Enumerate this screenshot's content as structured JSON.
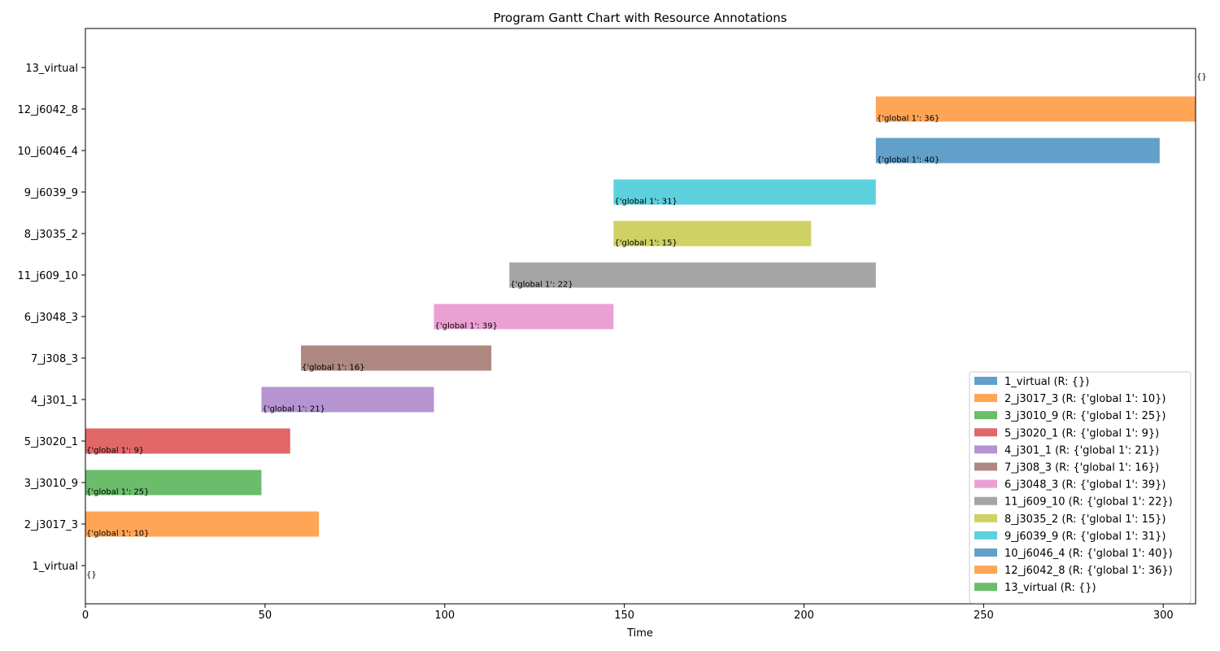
{
  "chart_data": {
    "type": "gantt",
    "title": "Program Gantt Chart with Resource Annotations",
    "xlabel": "Time",
    "ylabel": "",
    "xlim": [
      0,
      309
    ],
    "xticks": [
      0,
      50,
      100,
      150,
      200,
      250,
      300
    ],
    "grid": false,
    "legend_position": "lower-right",
    "tasks": [
      {
        "name": "1_virtual",
        "start": 0,
        "end": 0,
        "resources": "{}",
        "color": "#1f77b4",
        "legend": "1_virtual (R: {})"
      },
      {
        "name": "2_j3017_3",
        "start": 0,
        "end": 65,
        "resources": "{'global 1': 10}",
        "color": "#ff7f0e",
        "legend": "2_j3017_3 (R: {'global 1': 10})"
      },
      {
        "name": "3_j3010_9",
        "start": 0,
        "end": 49,
        "resources": "{'global 1': 25}",
        "color": "#2ca02c",
        "legend": "3_j3010_9 (R: {'global 1': 25})"
      },
      {
        "name": "5_j3020_1",
        "start": 0,
        "end": 57,
        "resources": "{'global 1': 9}",
        "color": "#d62728",
        "legend": "5_j3020_1 (R: {'global 1': 9})"
      },
      {
        "name": "4_j301_1",
        "start": 49,
        "end": 97,
        "resources": "{'global 1': 21}",
        "color": "#9467bd",
        "legend": "4_j301_1 (R: {'global 1': 21})"
      },
      {
        "name": "7_j308_3",
        "start": 60,
        "end": 113,
        "resources": "{'global 1': 16}",
        "color": "#8c564b",
        "legend": "7_j308_3 (R: {'global 1': 16})"
      },
      {
        "name": "6_j3048_3",
        "start": 97,
        "end": 147,
        "resources": "{'global 1': 39}",
        "color": "#e377c2",
        "legend": "6_j3048_3 (R: {'global 1': 39})"
      },
      {
        "name": "11_j609_10",
        "start": 118,
        "end": 220,
        "resources": "{'global 1': 22}",
        "color": "#7f7f7f",
        "legend": "11_j609_10 (R: {'global 1': 22})"
      },
      {
        "name": "8_j3035_2",
        "start": 147,
        "end": 202,
        "resources": "{'global 1': 15}",
        "color": "#bcbd22",
        "legend": "8_j3035_2 (R: {'global 1': 15})"
      },
      {
        "name": "9_j6039_9",
        "start": 147,
        "end": 220,
        "resources": "{'global 1': 31}",
        "color": "#17becf",
        "legend": "9_j6039_9 (R: {'global 1': 31})"
      },
      {
        "name": "10_j6046_4",
        "start": 220,
        "end": 299,
        "resources": "{'global 1': 40}",
        "color": "#1f77b4",
        "legend": "10_j6046_4 (R: {'global 1': 40})"
      },
      {
        "name": "12_j6042_8",
        "start": 220,
        "end": 309,
        "resources": "{'global 1': 36}",
        "color": "#ff7f0e",
        "legend": "12_j6042_8 (R: {'global 1': 36})"
      },
      {
        "name": "13_virtual",
        "start": 309,
        "end": 309,
        "resources": "{}",
        "color": "#2ca02c",
        "legend": "13_virtual (R: {})"
      }
    ]
  }
}
